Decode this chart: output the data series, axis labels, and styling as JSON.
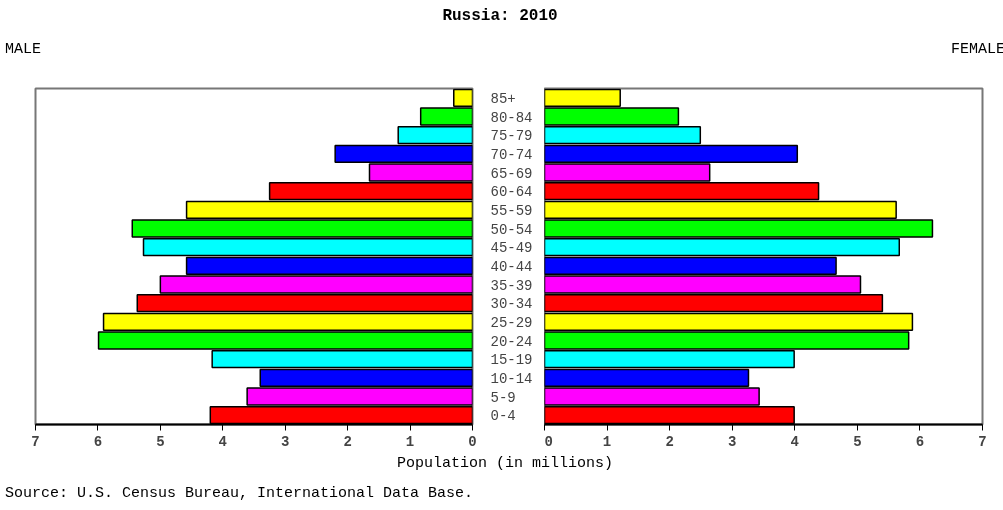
{
  "chart_data": [
    {
      "type": "bar",
      "orientation": "horizontal",
      "title": "Russia: 2010",
      "subtitle": "MALE",
      "xlabel": "Population (in millions)",
      "annotations": [
        "Source: U.S. Census Bureau, International Data Base."
      ],
      "grid": false,
      "legend": false,
      "categories": [
        "85+",
        "80-84",
        "75-79",
        "70-74",
        "65-69",
        "60-64",
        "55-59",
        "50-54",
        "45-49",
        "40-44",
        "35-39",
        "30-34",
        "25-29",
        "20-24",
        "15-19",
        "10-14",
        "5-9",
        "0-4"
      ],
      "values": [
        0.3,
        0.83,
        1.19,
        2.2,
        1.65,
        3.25,
        4.58,
        5.45,
        5.27,
        4.58,
        5.0,
        5.37,
        5.91,
        5.99,
        4.17,
        3.4,
        3.61,
        4.2
      ],
      "colors": [
        "#ffff00",
        "#00ff00",
        "#00ffff",
        "#0000ff",
        "#ff00ff",
        "#ff0000",
        "#ffff00",
        "#00ff00",
        "#00ffff",
        "#0000ff",
        "#ff00ff",
        "#ff0000",
        "#ffff00",
        "#00ff00",
        "#00ffff",
        "#0000ff",
        "#ff00ff",
        "#ff0000"
      ],
      "xlim": [
        7,
        0
      ],
      "xticks": [
        7,
        6,
        5,
        4,
        3,
        2,
        1,
        0
      ]
    },
    {
      "type": "bar",
      "orientation": "horizontal",
      "subtitle": "FEMALE",
      "tick_labels": "x",
      "grid": false,
      "legend": false,
      "categories": [
        null,
        null,
        null,
        null,
        null,
        null,
        null,
        null,
        null,
        null,
        null,
        null,
        null,
        null,
        null,
        null,
        null,
        null
      ],
      "values": [
        1.21,
        2.14,
        2.49,
        4.04,
        2.64,
        4.38,
        5.62,
        6.2,
        5.67,
        4.66,
        5.05,
        5.4,
        5.88,
        5.82,
        3.99,
        3.26,
        3.43,
        3.99
      ],
      "colors": [
        "#ffff00",
        "#00ff00",
        "#00ffff",
        "#0000ff",
        "#ff00ff",
        "#ff0000",
        "#ffff00",
        "#00ff00",
        "#00ffff",
        "#0000ff",
        "#ff00ff",
        "#ff0000",
        "#ffff00",
        "#00ff00",
        "#00ffff",
        "#0000ff",
        "#ff00ff",
        "#ff0000"
      ],
      "xlim": [
        0,
        7
      ],
      "xticks": [
        0,
        1,
        2,
        3,
        4,
        5,
        6,
        7
      ]
    }
  ]
}
